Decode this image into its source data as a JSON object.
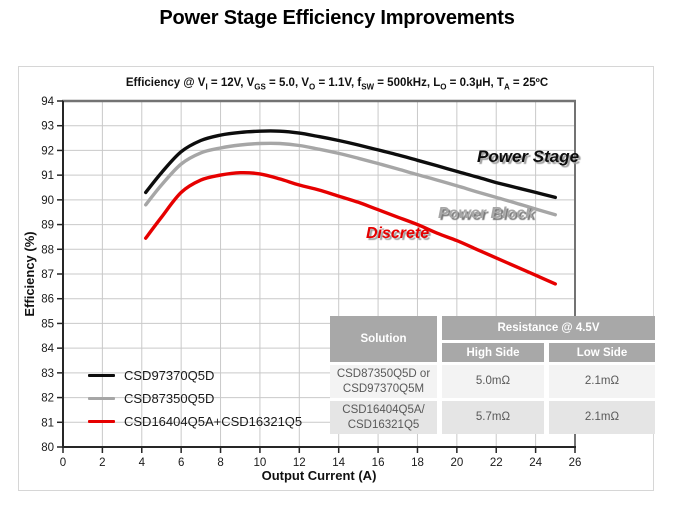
{
  "page_title": "Power Stage Efficiency Improvements",
  "chart_data": {
    "type": "line",
    "title": "Efficiency @ VI = 12V, VGS = 5.0, VO = 1.1V, fSW = 500kHz, LO = 0.3µH, TA = 25ºC",
    "title_segments": [
      {
        "text": "Efficiency @ V"
      },
      {
        "sub": "I"
      },
      {
        "text": " = 12V, V"
      },
      {
        "sub": "GS"
      },
      {
        "text": " = 5.0, V"
      },
      {
        "sub": "O"
      },
      {
        "text": " = 1.1V, f"
      },
      {
        "sub": "SW"
      },
      {
        "text": " = 500kHz, L"
      },
      {
        "sub": "O"
      },
      {
        "text": " = 0.3µH, T"
      },
      {
        "sub": "A"
      },
      {
        "text": " = 25ºC"
      }
    ],
    "xlabel": "Output Current (A)",
    "ylabel": "Efficiency (%)",
    "xlim": [
      0,
      26
    ],
    "ylim": [
      80,
      94
    ],
    "x_ticks": [
      0,
      2,
      4,
      6,
      8,
      10,
      12,
      14,
      16,
      18,
      20,
      22,
      24,
      26
    ],
    "y_ticks": [
      80,
      81,
      82,
      83,
      84,
      85,
      86,
      87,
      88,
      89,
      90,
      91,
      92,
      93,
      94
    ],
    "grid": true,
    "legend_position": "lower-left",
    "series": [
      {
        "name": "CSD97370Q5D",
        "annotation": "Power Stage",
        "color": "#0d0d0d",
        "x": [
          4.2,
          5,
          6,
          7,
          8,
          9,
          10,
          11,
          12,
          13,
          14,
          15,
          16,
          17,
          18,
          19,
          20,
          21,
          22,
          23,
          24,
          25
        ],
        "y": [
          90.3,
          91.1,
          91.95,
          92.4,
          92.62,
          92.73,
          92.78,
          92.78,
          92.7,
          92.56,
          92.4,
          92.22,
          92.02,
          91.82,
          91.6,
          91.38,
          91.15,
          90.93,
          90.7,
          90.5,
          90.3,
          90.1
        ]
      },
      {
        "name": "CSD87350Q5D",
        "annotation": "Power Block",
        "color": "#a6a6a6",
        "x": [
          4.2,
          5,
          6,
          7,
          8,
          9,
          10,
          11,
          12,
          13,
          14,
          15,
          16,
          17,
          18,
          19,
          20,
          21,
          22,
          23,
          24,
          25
        ],
        "y": [
          89.8,
          90.6,
          91.45,
          91.9,
          92.1,
          92.22,
          92.28,
          92.28,
          92.2,
          92.05,
          91.88,
          91.68,
          91.47,
          91.25,
          91.02,
          90.8,
          90.57,
          90.33,
          90.1,
          89.87,
          89.63,
          89.4
        ]
      },
      {
        "name": "CSD16404Q5A+CSD16321Q5",
        "annotation": "Discrete",
        "color": "#e60000",
        "x": [
          4.2,
          5,
          6,
          7,
          8,
          9,
          10,
          11,
          12,
          13,
          14,
          15,
          16,
          17,
          18,
          19,
          20,
          21,
          22,
          23,
          24,
          25
        ],
        "y": [
          88.45,
          89.3,
          90.3,
          90.8,
          91.0,
          91.1,
          91.05,
          90.85,
          90.6,
          90.4,
          90.15,
          89.9,
          89.6,
          89.3,
          89.0,
          88.65,
          88.35,
          88.0,
          87.65,
          87.3,
          86.95,
          86.6
        ]
      }
    ]
  },
  "table": {
    "col1_header": "Solution",
    "group_header": "Resistance @ 4.5V",
    "sub_headers": [
      "High Side",
      "Low Side"
    ],
    "rows": [
      {
        "solution": "CSD87350Q5D or\nCSD97370Q5M",
        "high_side": "5.0mΩ",
        "low_side": "2.1mΩ"
      },
      {
        "solution": "CSD16404Q5A/\nCSD16321Q5",
        "high_side": "5.7mΩ",
        "low_side": "2.1mΩ"
      }
    ]
  }
}
